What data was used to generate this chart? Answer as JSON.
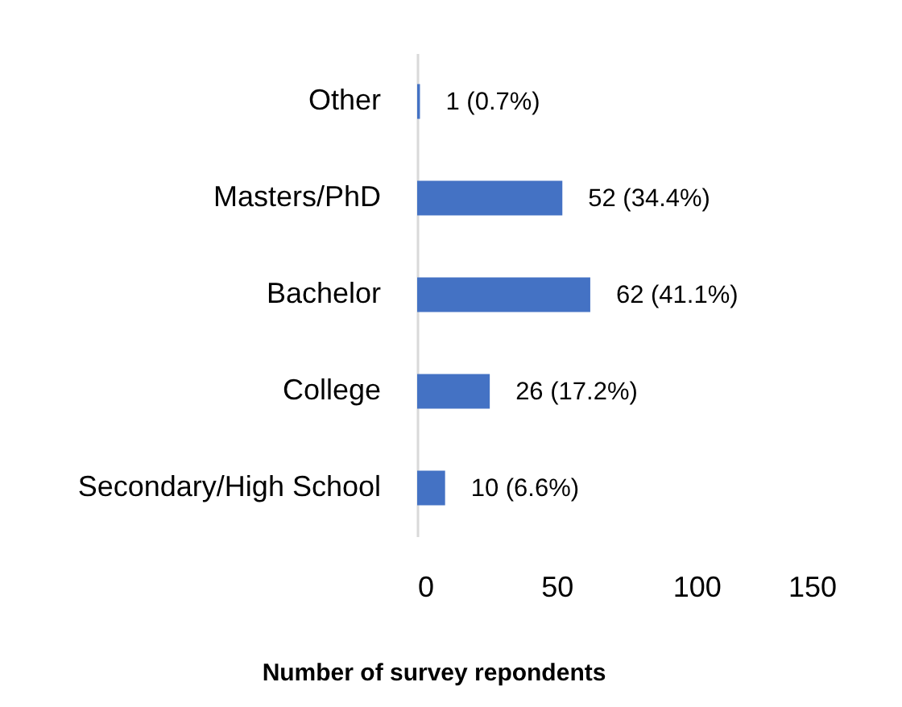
{
  "chart_data": {
    "type": "bar",
    "orientation": "horizontal",
    "categories": [
      "Other",
      "Masters/PhD",
      "Bachelor",
      "College",
      "Secondary/High School"
    ],
    "values": [
      1,
      52,
      62,
      26,
      10
    ],
    "value_labels": [
      "1 (0.7%)",
      "52 (34.4%)",
      "62 (41.1%)",
      "26 (17.2%)",
      "10 (6.6%)"
    ],
    "color": "#4472c4",
    "xlabel": "Number of survey repondents",
    "xlim": [
      0,
      150
    ],
    "xticks": [
      0,
      50,
      100,
      150
    ]
  }
}
